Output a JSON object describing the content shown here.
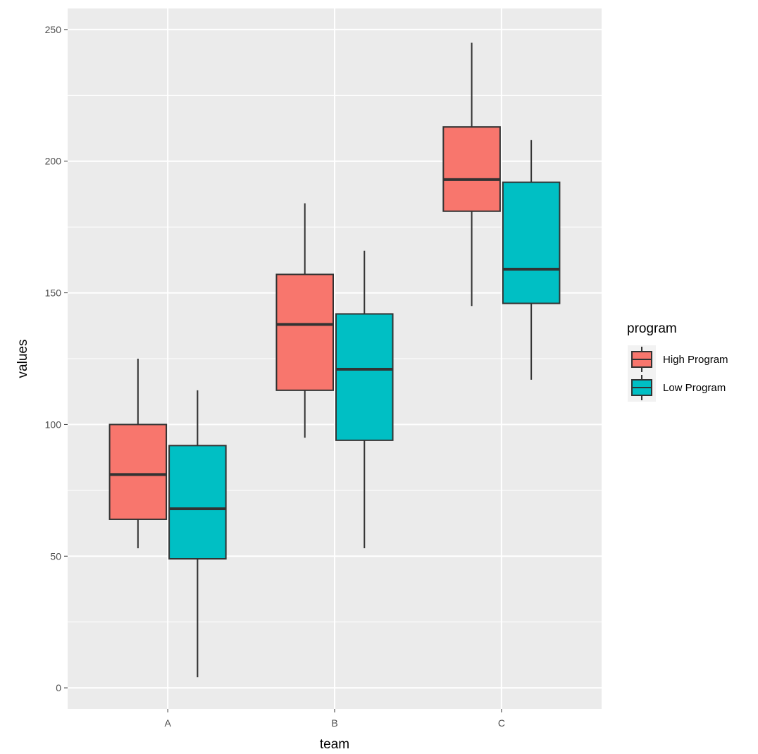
{
  "chart_data": {
    "type": "boxplot",
    "title": "",
    "xlabel": "team",
    "ylabel": "values",
    "categories": [
      "A",
      "B",
      "C"
    ],
    "ylim": [
      -8,
      258
    ],
    "y_ticks": [
      0,
      50,
      100,
      150,
      200,
      250
    ],
    "y_tick_labels": [
      "0",
      "50",
      "100",
      "150",
      "200",
      "250"
    ],
    "grid": true,
    "legend": {
      "title": "program",
      "position": "right"
    },
    "series": [
      {
        "name": "High Program",
        "color": "#F8766D",
        "boxes": [
          {
            "category": "A",
            "min": 53,
            "q1": 64,
            "median": 81,
            "q3": 100,
            "max": 125
          },
          {
            "category": "B",
            "min": 95,
            "q1": 113,
            "median": 138,
            "q3": 157,
            "max": 184
          },
          {
            "category": "C",
            "min": 145,
            "q1": 181,
            "median": 193,
            "q3": 213,
            "max": 245
          }
        ]
      },
      {
        "name": "Low Program",
        "color": "#00BFC4",
        "boxes": [
          {
            "category": "A",
            "min": 4,
            "q1": 49,
            "median": 68,
            "q3": 92,
            "max": 113
          },
          {
            "category": "B",
            "min": 53,
            "q1": 94,
            "median": 121,
            "q3": 142,
            "max": 166
          },
          {
            "category": "C",
            "min": 117,
            "q1": 146,
            "median": 159,
            "q3": 192,
            "max": 208
          }
        ]
      }
    ]
  }
}
